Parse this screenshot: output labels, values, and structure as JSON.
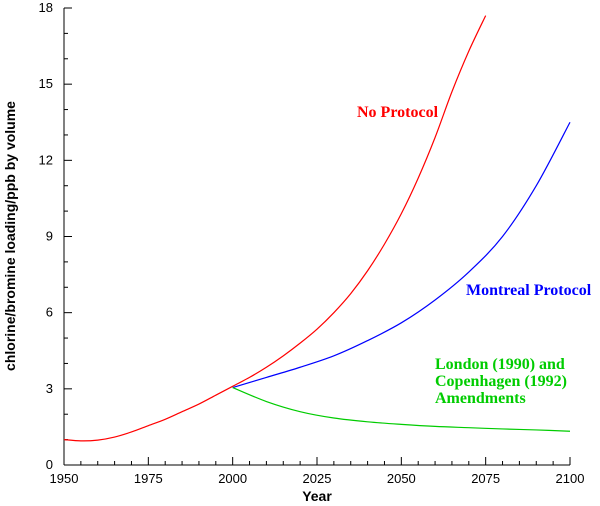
{
  "chart_data": {
    "type": "line",
    "title": "",
    "xlabel": "Year",
    "ylabel": "chlorine/bromine loading/ppb by volume",
    "xlim": [
      1950,
      2100
    ],
    "ylim": [
      0,
      18
    ],
    "x_ticks": [
      1950,
      1975,
      2000,
      2025,
      2050,
      2075,
      2100
    ],
    "x_tick_labels": [
      "1950",
      "1975",
      "2000",
      "2025",
      "2050",
      "2075",
      "2100"
    ],
    "y_ticks": [
      0,
      3,
      6,
      9,
      12,
      15,
      18
    ],
    "y_tick_labels": [
      "0",
      "3",
      "6",
      "9",
      "12",
      "15",
      "18"
    ],
    "grid": false,
    "series": [
      {
        "name": "No Protocol",
        "color": "#ff0000",
        "x": [
          1950,
          1955,
          1960,
          1965,
          1970,
          1975,
          1980,
          1985,
          1990,
          1995,
          2000,
          2005,
          2010,
          2015,
          2020,
          2025,
          2030,
          2035,
          2040,
          2045,
          2050,
          2055,
          2060,
          2065,
          2070,
          2075
        ],
        "y": [
          1.0,
          0.95,
          0.98,
          1.1,
          1.3,
          1.55,
          1.8,
          2.1,
          2.4,
          2.75,
          3.1,
          3.45,
          3.85,
          4.3,
          4.8,
          5.35,
          6.0,
          6.75,
          7.65,
          8.7,
          9.9,
          11.3,
          12.9,
          14.7,
          16.3,
          17.7
        ]
      },
      {
        "name": "Montreal Protocol",
        "color": "#0000ff",
        "x": [
          2000,
          2010,
          2020,
          2030,
          2040,
          2050,
          2060,
          2070,
          2080,
          2090,
          2100
        ],
        "y": [
          3.05,
          3.45,
          3.85,
          4.3,
          4.9,
          5.6,
          6.5,
          7.6,
          9.0,
          11.0,
          13.5
        ]
      },
      {
        "name": "London (1990) and Copenhagen (1992) Amendments",
        "color": "#00cc00",
        "x": [
          2000,
          2010,
          2020,
          2030,
          2040,
          2050,
          2060,
          2070,
          2080,
          2090,
          2100
        ],
        "y": [
          3.05,
          2.5,
          2.1,
          1.85,
          1.7,
          1.6,
          1.52,
          1.47,
          1.42,
          1.38,
          1.33
        ]
      }
    ],
    "annotations": [
      {
        "key": "no_protocol",
        "lines": [
          "No Protocol"
        ],
        "color": "#ff0000"
      },
      {
        "key": "montreal",
        "lines": [
          "Montreal Protocol"
        ],
        "color": "#0000ff"
      },
      {
        "key": "london",
        "lines": [
          "London (1990) and",
          "Copenhagen (1992)",
          "Amendments"
        ],
        "color": "#00cc00"
      }
    ]
  }
}
